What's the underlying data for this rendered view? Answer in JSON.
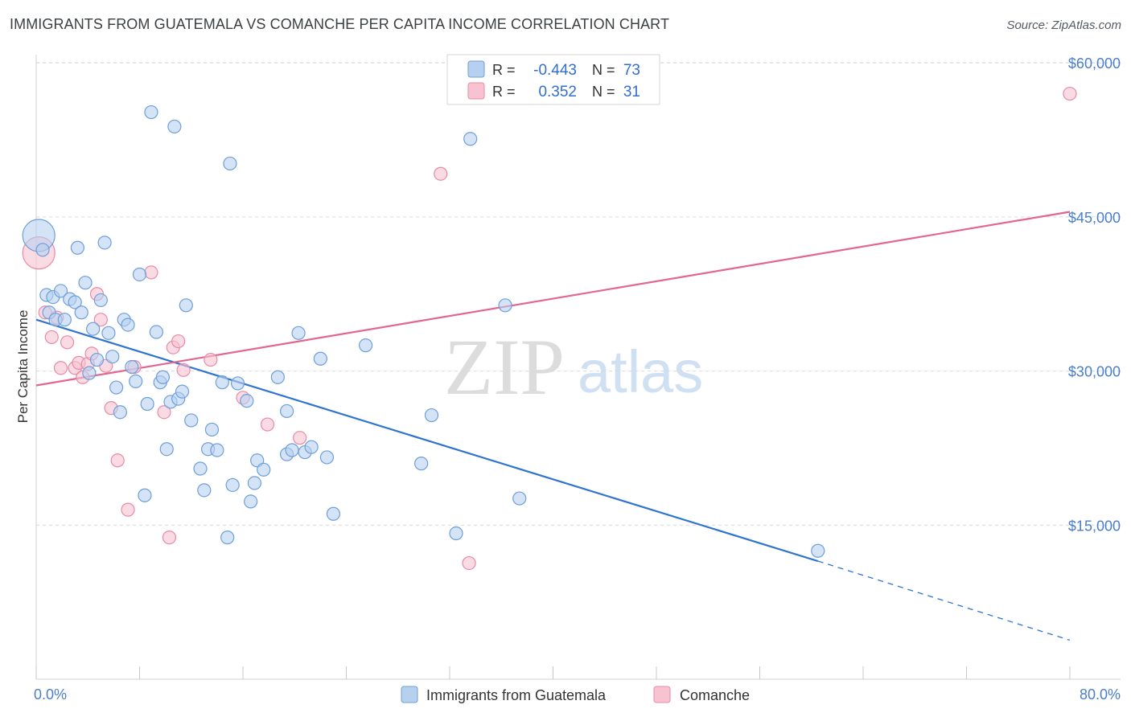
{
  "header": {
    "title": "IMMIGRANTS FROM GUATEMALA VS COMANCHE PER CAPITA INCOME CORRELATION CHART",
    "source": "Source: ZipAtlas.com"
  },
  "watermark": {
    "zip": "ZIP",
    "atlas": "atlas"
  },
  "legend_top": {
    "rows": [
      {
        "r_label": "R =",
        "r_value": "-0.443",
        "n_label": "N =",
        "n_value": "73"
      },
      {
        "r_label": "R =",
        "r_value": "0.352",
        "n_label": "N =",
        "n_value": "31"
      }
    ]
  },
  "colors": {
    "blue_fill": "#b7d0f0",
    "blue_stroke": "#6d9fd9",
    "blue_line": "#2f74d0",
    "pink_fill": "#f7c3d2",
    "pink_stroke": "#e88aa7",
    "pink_line": "#e2668f",
    "grid": "#d9d9d9",
    "axis_text": "#4a7ec9"
  },
  "chart_data": {
    "type": "scatter",
    "title": "IMMIGRANTS FROM GUATEMALA VS COMANCHE PER CAPITA INCOME CORRELATION CHART",
    "xlabel": "",
    "ylabel": "Per Capita Income",
    "xlim": [
      0,
      80
    ],
    "ylim": [
      0,
      63000
    ],
    "x_tick_labels": [
      "0.0%",
      "80.0%"
    ],
    "y_ticks": [
      15000,
      30000,
      45000,
      60000
    ],
    "y_tick_labels": [
      "$15,000",
      "$30,000",
      "$45,000",
      "$60,000"
    ],
    "grid": true,
    "legend_position": "bottom-center",
    "series": [
      {
        "name": "Immigrants from Guatemala",
        "color": "#6d9fd9",
        "r": -0.443,
        "n": 73,
        "trend": {
          "x0": 0,
          "y0": 35000,
          "x1": 60.5,
          "y1": 11500,
          "dashed_to_x": 80,
          "dashed_to_y": 3800
        },
        "points": [
          {
            "x": 0.2,
            "y": 43200,
            "big": true
          },
          {
            "x": 0.5,
            "y": 41800
          },
          {
            "x": 0.8,
            "y": 37400
          },
          {
            "x": 1.0,
            "y": 35700
          },
          {
            "x": 1.3,
            "y": 37200
          },
          {
            "x": 1.5,
            "y": 35000
          },
          {
            "x": 1.9,
            "y": 37800
          },
          {
            "x": 2.2,
            "y": 35000
          },
          {
            "x": 2.6,
            "y": 37000
          },
          {
            "x": 3.0,
            "y": 36700
          },
          {
            "x": 3.2,
            "y": 42000
          },
          {
            "x": 3.5,
            "y": 35700
          },
          {
            "x": 3.8,
            "y": 38600
          },
          {
            "x": 4.1,
            "y": 29800
          },
          {
            "x": 4.4,
            "y": 34100
          },
          {
            "x": 4.7,
            "y": 31100
          },
          {
            "x": 5.0,
            "y": 36900
          },
          {
            "x": 5.3,
            "y": 42500
          },
          {
            "x": 5.6,
            "y": 33700
          },
          {
            "x": 5.9,
            "y": 31400
          },
          {
            "x": 6.2,
            "y": 28400
          },
          {
            "x": 6.5,
            "y": 26000
          },
          {
            "x": 6.8,
            "y": 35000
          },
          {
            "x": 7.1,
            "y": 34500
          },
          {
            "x": 7.4,
            "y": 30400
          },
          {
            "x": 7.7,
            "y": 29000
          },
          {
            "x": 8.0,
            "y": 39400
          },
          {
            "x": 8.4,
            "y": 17900
          },
          {
            "x": 8.6,
            "y": 26800
          },
          {
            "x": 8.9,
            "y": 55200
          },
          {
            "x": 9.3,
            "y": 33800
          },
          {
            "x": 9.6,
            "y": 28900
          },
          {
            "x": 9.8,
            "y": 29400
          },
          {
            "x": 10.1,
            "y": 22400
          },
          {
            "x": 10.4,
            "y": 27000
          },
          {
            "x": 10.7,
            "y": 53800
          },
          {
            "x": 11.0,
            "y": 27300
          },
          {
            "x": 11.3,
            "y": 28000
          },
          {
            "x": 11.6,
            "y": 36400
          },
          {
            "x": 12.0,
            "y": 25200
          },
          {
            "x": 12.7,
            "y": 20500
          },
          {
            "x": 13.0,
            "y": 18400
          },
          {
            "x": 13.3,
            "y": 22400
          },
          {
            "x": 13.6,
            "y": 24300
          },
          {
            "x": 14.0,
            "y": 22300
          },
          {
            "x": 14.4,
            "y": 28900
          },
          {
            "x": 14.8,
            "y": 13800
          },
          {
            "x": 15.0,
            "y": 50200
          },
          {
            "x": 15.2,
            "y": 18900
          },
          {
            "x": 15.6,
            "y": 28800
          },
          {
            "x": 16.3,
            "y": 27100
          },
          {
            "x": 16.6,
            "y": 17300
          },
          {
            "x": 16.9,
            "y": 19100
          },
          {
            "x": 17.1,
            "y": 21300
          },
          {
            "x": 17.6,
            "y": 20400
          },
          {
            "x": 18.7,
            "y": 29400
          },
          {
            "x": 19.4,
            "y": 26100
          },
          {
            "x": 19.4,
            "y": 21900
          },
          {
            "x": 19.8,
            "y": 22300
          },
          {
            "x": 20.3,
            "y": 33700
          },
          {
            "x": 20.8,
            "y": 22100
          },
          {
            "x": 21.3,
            "y": 22600
          },
          {
            "x": 22.0,
            "y": 31200
          },
          {
            "x": 22.5,
            "y": 21600
          },
          {
            "x": 23.0,
            "y": 16100
          },
          {
            "x": 25.5,
            "y": 32500
          },
          {
            "x": 29.8,
            "y": 21000
          },
          {
            "x": 30.6,
            "y": 25700
          },
          {
            "x": 32.5,
            "y": 14200
          },
          {
            "x": 33.6,
            "y": 52600
          },
          {
            "x": 36.3,
            "y": 36400
          },
          {
            "x": 37.4,
            "y": 17600
          },
          {
            "x": 60.5,
            "y": 12500
          }
        ]
      },
      {
        "name": "Comanche",
        "color": "#e88aa7",
        "r": 0.352,
        "n": 31,
        "trend": {
          "x0": 0,
          "y0": 28600,
          "x1": 80,
          "y1": 45500
        },
        "points": [
          {
            "x": 0.2,
            "y": 41500,
            "big": true
          },
          {
            "x": 0.7,
            "y": 35700
          },
          {
            "x": 1.2,
            "y": 33300
          },
          {
            "x": 1.6,
            "y": 35200
          },
          {
            "x": 1.9,
            "y": 30300
          },
          {
            "x": 2.4,
            "y": 32800
          },
          {
            "x": 3.0,
            "y": 30300
          },
          {
            "x": 3.3,
            "y": 30800
          },
          {
            "x": 3.6,
            "y": 29400
          },
          {
            "x": 4.0,
            "y": 30700
          },
          {
            "x": 4.3,
            "y": 31700
          },
          {
            "x": 4.7,
            "y": 37500
          },
          {
            "x": 5.0,
            "y": 35000
          },
          {
            "x": 5.4,
            "y": 30500
          },
          {
            "x": 5.8,
            "y": 26400
          },
          {
            "x": 6.3,
            "y": 21300
          },
          {
            "x": 7.1,
            "y": 16500
          },
          {
            "x": 7.6,
            "y": 30400
          },
          {
            "x": 8.9,
            "y": 39600
          },
          {
            "x": 9.9,
            "y": 26000
          },
          {
            "x": 10.3,
            "y": 13800
          },
          {
            "x": 10.6,
            "y": 32300
          },
          {
            "x": 11.0,
            "y": 32900
          },
          {
            "x": 11.4,
            "y": 30100
          },
          {
            "x": 13.5,
            "y": 31100
          },
          {
            "x": 16.0,
            "y": 27400
          },
          {
            "x": 17.9,
            "y": 24800
          },
          {
            "x": 20.4,
            "y": 23500
          },
          {
            "x": 31.3,
            "y": 49200
          },
          {
            "x": 33.5,
            "y": 11300
          },
          {
            "x": 80.0,
            "y": 57000
          }
        ]
      }
    ]
  }
}
